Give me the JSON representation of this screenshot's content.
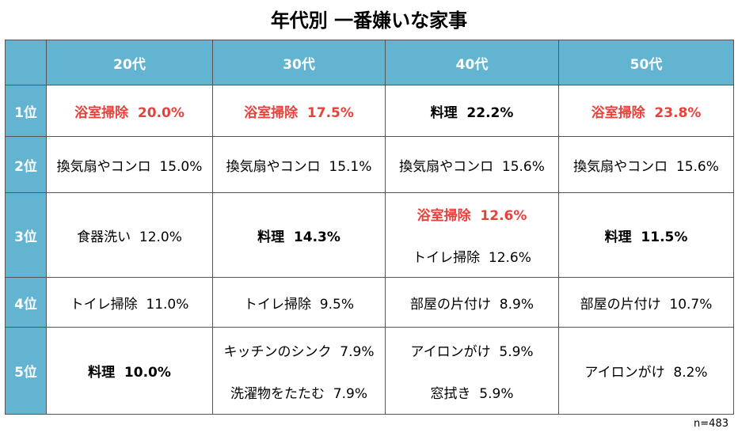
{
  "title": "年代別 一番嫌いな家事",
  "table": {
    "header": [
      "20代",
      "30代",
      "40代",
      "50代"
    ],
    "rows": [
      {
        "rank": "1位",
        "cells": [
          [
            {
              "text": "浴室掃除  20.0%",
              "style": "red"
            }
          ],
          [
            {
              "text": "浴室掃除  17.5%",
              "style": "red"
            }
          ],
          [
            {
              "text": "料理  22.2%",
              "style": "bold"
            }
          ],
          [
            {
              "text": "浴室掃除  23.8%",
              "style": "red"
            }
          ]
        ]
      },
      {
        "rank": "2位",
        "cells": [
          [
            {
              "text": "換気扇やコンロ  15.0%",
              "style": "normal"
            }
          ],
          [
            {
              "text": "換気扇やコンロ  15.1%",
              "style": "normal"
            }
          ],
          [
            {
              "text": "換気扇やコンロ  15.6%",
              "style": "normal"
            }
          ],
          [
            {
              "text": "換気扇やコンロ  15.6%",
              "style": "normal"
            }
          ]
        ]
      },
      {
        "rank": "3位",
        "cells": [
          [
            {
              "text": "食器洗い  12.0%",
              "style": "normal"
            }
          ],
          [
            {
              "text": "料理  14.3%",
              "style": "bold"
            }
          ],
          [
            {
              "text": "浴室掃除  12.6%",
              "style": "red"
            },
            {
              "text": "トイレ掃除  12.6%",
              "style": "normal"
            }
          ],
          [
            {
              "text": "料理  11.5%",
              "style": "bold"
            }
          ]
        ]
      },
      {
        "rank": "4位",
        "cells": [
          [
            {
              "text": "トイレ掃除  11.0%",
              "style": "normal"
            }
          ],
          [
            {
              "text": "トイレ掃除  9.5%",
              "style": "normal"
            }
          ],
          [
            {
              "text": "部屋の片付け  8.9%",
              "style": "normal"
            }
          ],
          [
            {
              "text": "部屋の片付け  10.7%",
              "style": "normal"
            }
          ]
        ]
      },
      {
        "rank": "5位",
        "cells": [
          [
            {
              "text": "料理  10.0%",
              "style": "bold"
            }
          ],
          [
            {
              "text": "キッチンのシンク  7.9%",
              "style": "normal"
            },
            {
              "text": "洗濯物をたたむ  7.9%",
              "style": "normal"
            }
          ],
          [
            {
              "text": "アイロンがけ  5.9%",
              "style": "normal"
            },
            {
              "text": "窓拭き  5.9%",
              "style": "normal"
            }
          ],
          [
            {
              "text": "アイロンがけ  8.2%",
              "style": "normal"
            }
          ]
        ]
      }
    ]
  },
  "note": "n=483"
}
